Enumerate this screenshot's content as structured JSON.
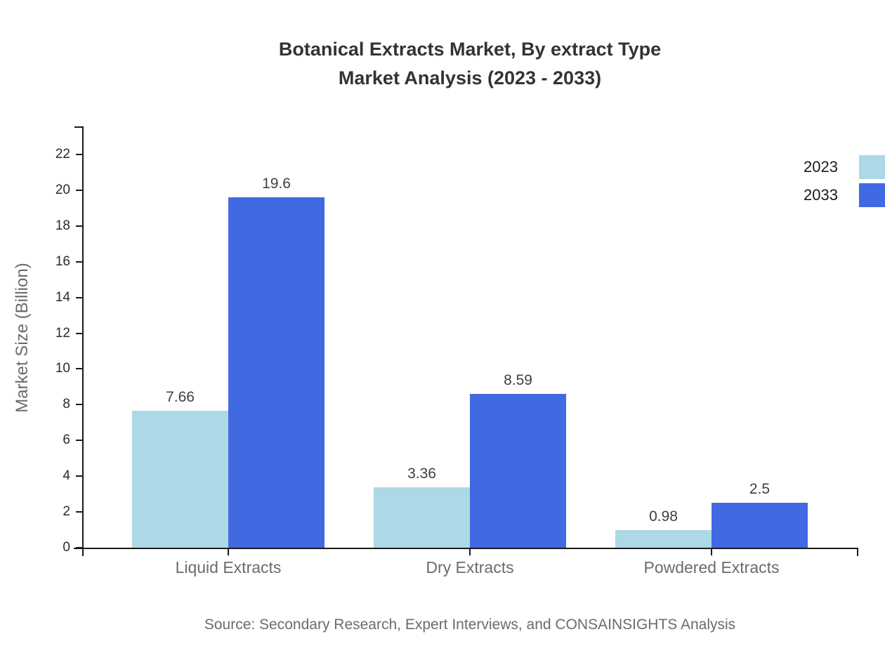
{
  "title": {
    "line1": "Botanical Extracts Market, By extract Type",
    "line2": "Market Analysis (2023 - 2033)"
  },
  "y_axis": {
    "label": "Market Size (Billion)"
  },
  "source_note": "Source: Secondary Research, Expert Interviews, and CONSAINSIGHTS Analysis",
  "chart_data": {
    "type": "bar",
    "title": "Botanical Extracts Market, By extract Type — Market Analysis (2023 - 2033)",
    "categories": [
      "Liquid Extracts",
      "Dry Extracts",
      "Powdered Extracts"
    ],
    "series": [
      {
        "name": "2023",
        "color": "#ADD8E6",
        "values": [
          7.66,
          3.36,
          0.98
        ]
      },
      {
        "name": "2033",
        "color": "#4169E1",
        "values": [
          19.6,
          8.59,
          2.5
        ]
      }
    ],
    "value_labels": [
      "7.66",
      "19.6",
      "3.36",
      "8.59",
      "0.98",
      "2.5"
    ],
    "xlabel": "",
    "ylabel": "Market Size (Billion)",
    "ylim": [
      0,
      23.6
    ],
    "yticks": [
      0,
      2,
      4,
      6,
      8,
      10,
      12,
      14,
      16,
      18,
      20,
      22
    ],
    "grid": false,
    "legend_position": "top-right",
    "value_labels_shown": true
  }
}
